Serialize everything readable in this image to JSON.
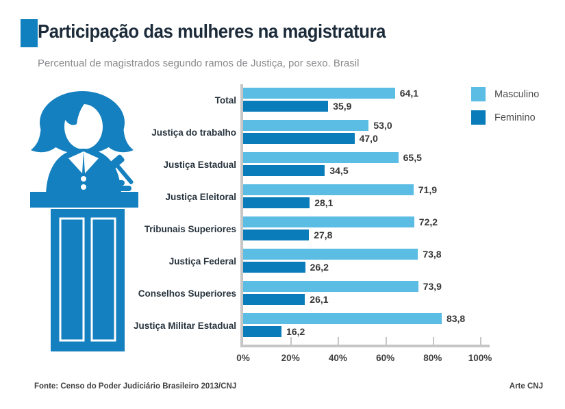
{
  "header": {
    "title": "Participação das mulheres na magistratura",
    "subtitle": "Percentual de magistrados segundo ramos de Justiça, por sexo. Brasil"
  },
  "legend": {
    "items": [
      {
        "label": "Masculino",
        "color": "#5BBCE4"
      },
      {
        "label": "Feminino",
        "color": "#0A7CB9"
      }
    ]
  },
  "chart_data": {
    "type": "bar",
    "orientation": "horizontal",
    "title": "Participação das mulheres na magistratura",
    "subtitle": "Percentual de magistrados segundo ramos de Justiça, por sexo. Brasil",
    "categories": [
      "Total",
      "Justiça do trabalho",
      "Justiça Estadual",
      "Justiça Eleitoral",
      "Tribunais Superiores",
      "Justiça Federal",
      "Conselhos Superiores",
      "Justiça Militar Estadual"
    ],
    "series": [
      {
        "name": "Masculino",
        "color": "#5BBCE4",
        "values": [
          64.1,
          53.0,
          65.5,
          71.9,
          72.2,
          73.8,
          73.9,
          83.8
        ]
      },
      {
        "name": "Feminino",
        "color": "#0A7CB9",
        "values": [
          35.9,
          47.0,
          34.5,
          28.1,
          27.8,
          26.2,
          26.1,
          16.2
        ]
      }
    ],
    "x_ticks": [
      "0%",
      "20%",
      "40%",
      "60%",
      "80%",
      "100%"
    ],
    "xlim": [
      0,
      100
    ],
    "value_decimal_separator": ",",
    "grid": false,
    "legend_position": "top-right"
  },
  "footer": {
    "source": "Fonte: Censo do Poder Judiciário Brasileiro 2013/CNJ",
    "credit": "Arte CNJ"
  },
  "icons": {
    "judge": "female-judge-at-podium-with-gavel"
  },
  "colors": {
    "accent": "#1080BF",
    "title_text": "#1C2B39",
    "subtitle_text": "#87898C",
    "axis": "#C6C6C6",
    "icon_blue": "#1580BF"
  }
}
